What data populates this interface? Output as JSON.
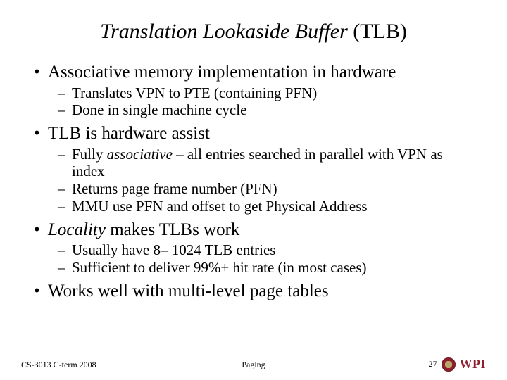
{
  "title_italic": "Translation Lookaside Buffer",
  "title_plain": " (TLB)",
  "bullets": {
    "b1": "Associative memory implementation in hardware",
    "b1_sub": {
      "s1": "Translates VPN to PTE (containing PFN)",
      "s2": "Done in single machine cycle"
    },
    "b2": "TLB is hardware assist",
    "b2_sub": {
      "s1_pre": "Fully ",
      "s1_em": "associative",
      "s1_post": " – all entries searched in parallel with VPN as index",
      "s2": "Returns page frame number (PFN)",
      "s3": "MMU use PFN and offset to get Physical Address"
    },
    "b3_em": "Locality",
    "b3_post": " makes TLBs work",
    "b3_sub": {
      "s1": "Usually have 8– 1024 TLB entries",
      "s2": "Sufficient to deliver 99%+ hit rate (in most cases)"
    },
    "b4": "Works well with multi-level page tables"
  },
  "footer": {
    "left": "CS-3013 C-term 2008",
    "center": "Paging",
    "page": "27",
    "logo_text": "WPI"
  },
  "colors": {
    "brand": "#8e1f2f"
  }
}
